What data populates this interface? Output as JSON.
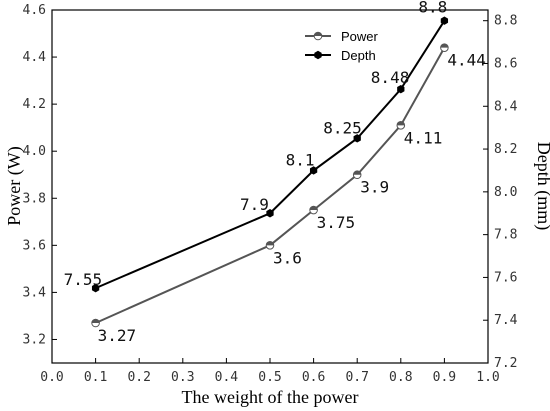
{
  "chart_data": {
    "type": "line",
    "xlabel": "The weight of the power",
    "ylabel": "Power (W)",
    "y2label": "Depth (mm)",
    "xlim": [
      0.0,
      1.0
    ],
    "ylim": [
      3.1,
      4.6
    ],
    "y2lim": [
      7.2,
      8.85
    ],
    "x_ticks": [
      "0.0",
      "0.1",
      "0.2",
      "0.3",
      "0.4",
      "0.5",
      "0.6",
      "0.7",
      "0.8",
      "0.9",
      "1.0"
    ],
    "y_ticks": [
      "3.2",
      "3.4",
      "3.6",
      "3.8",
      "4.0",
      "4.2",
      "4.4",
      "4.6"
    ],
    "y2_ticks": [
      "7.2",
      "7.4",
      "7.6",
      "7.8",
      "8.0",
      "8.2",
      "8.4",
      "8.6",
      "8.8"
    ],
    "legend_position": "top-right",
    "grid": false,
    "series": [
      {
        "name": "Power",
        "axis": "left",
        "color": "#555555",
        "marker": "half-filled circle",
        "x": [
          0.1,
          0.5,
          0.6,
          0.7,
          0.8,
          0.9
        ],
        "values": [
          3.27,
          3.6,
          3.75,
          3.9,
          4.11,
          4.44
        ],
        "labels": [
          "3.27",
          "3.6",
          "3.75",
          "3.9",
          "4.11",
          "4.44"
        ]
      },
      {
        "name": "Depth",
        "axis": "right",
        "color": "#000000",
        "marker": "filled hexagon",
        "x": [
          0.1,
          0.5,
          0.6,
          0.7,
          0.8,
          0.9
        ],
        "values": [
          7.55,
          7.9,
          8.1,
          8.25,
          8.48,
          8.8
        ],
        "labels": [
          "7.55",
          "7.9",
          "8.1",
          "8.25",
          "8.48",
          "8.8"
        ]
      }
    ]
  }
}
